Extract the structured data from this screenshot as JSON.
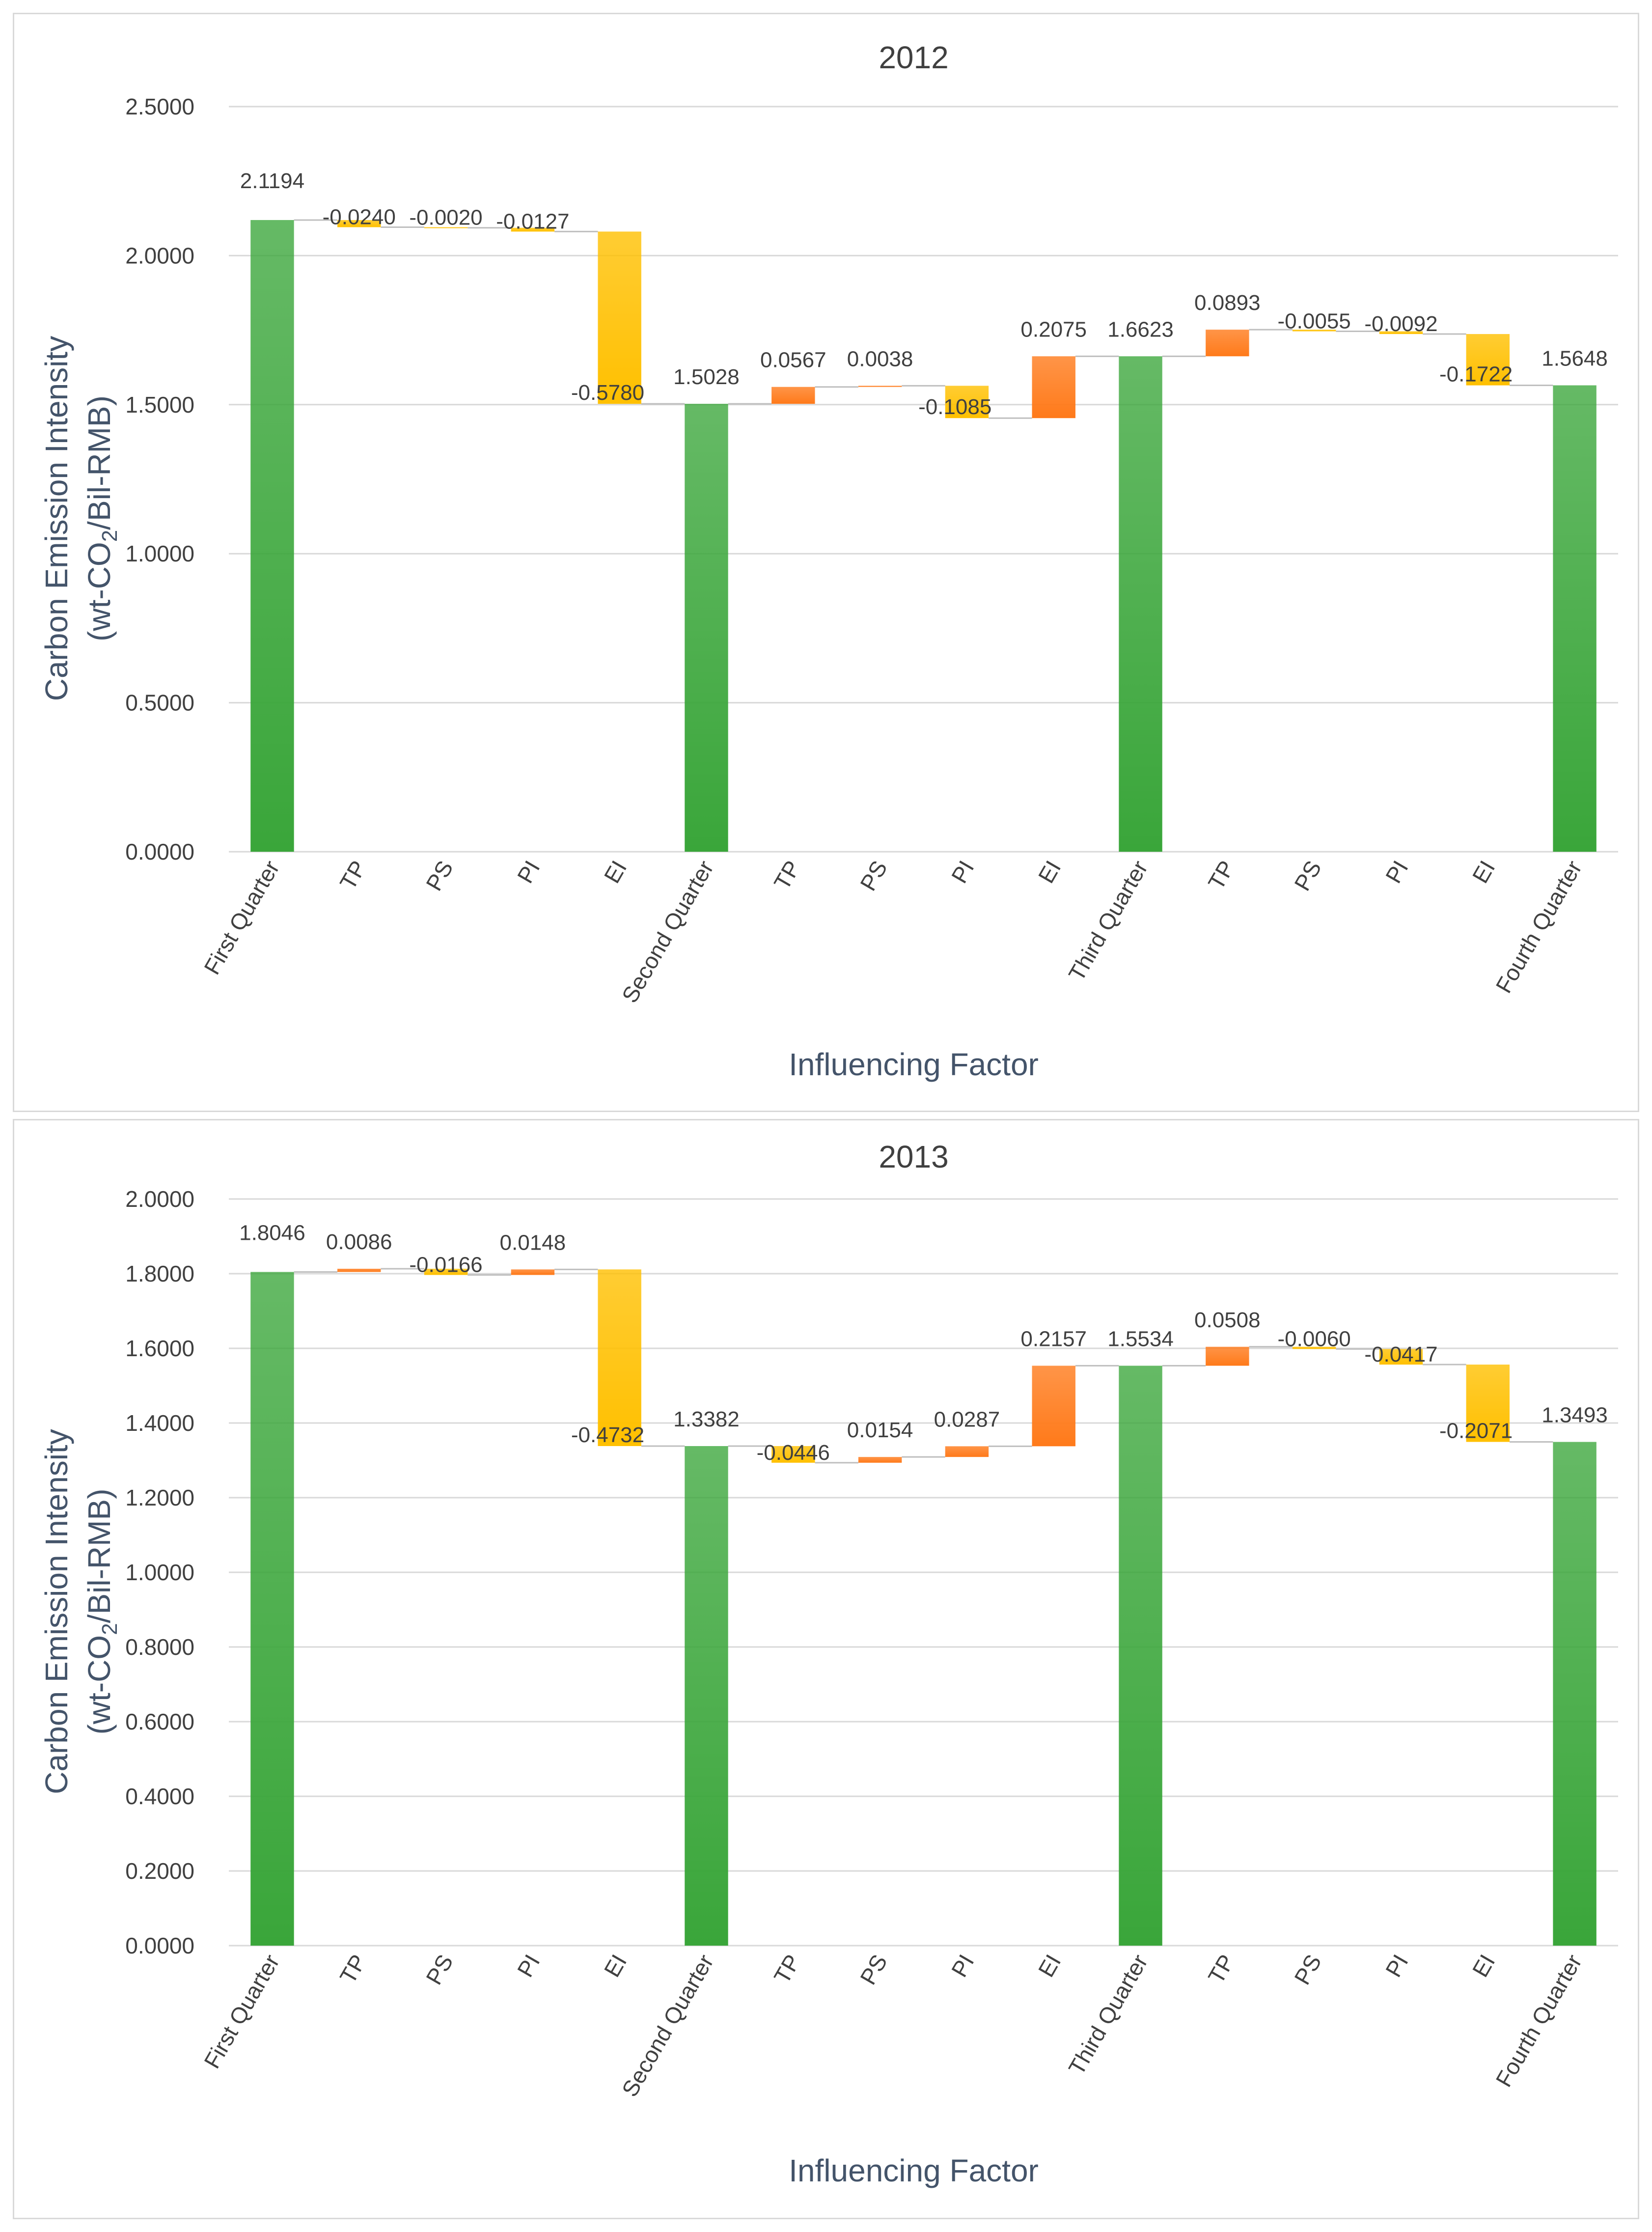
{
  "chart_data": [
    {
      "type": "waterfall",
      "title": "2012",
      "xlabel": "Influencing Factor",
      "ylabel_line1": "Carbon Emission Intensity",
      "ylabel_line2_prefix": "(wt-CO",
      "ylabel_line2_sub": "2",
      "ylabel_line2_suffix": "/Bil-RMB)",
      "ylim": [
        0,
        2.5
      ],
      "yticks": [
        "0.0000",
        "0.5000",
        "1.0000",
        "1.5000",
        "2.0000",
        "2.5000"
      ],
      "ytick_values": [
        0,
        0.5,
        1.0,
        1.5,
        2.0,
        2.5
      ],
      "categories": [
        "First Quarter",
        "TP",
        "PS",
        "PI",
        "EI",
        "Second Quarter",
        "TP",
        "PS",
        "PI",
        "EI",
        "Third Quarter",
        "TP",
        "PS",
        "PI",
        "EI",
        "Fourth Quarter"
      ],
      "kinds": [
        "total",
        "delta",
        "delta",
        "delta",
        "delta",
        "total",
        "delta",
        "delta",
        "delta",
        "delta",
        "total",
        "delta",
        "delta",
        "delta",
        "delta",
        "total"
      ],
      "values": [
        2.1194,
        -0.024,
        -0.002,
        -0.0127,
        -0.578,
        1.5028,
        0.0567,
        0.0038,
        -0.1085,
        0.2075,
        1.6623,
        0.0893,
        -0.0055,
        -0.0092,
        -0.1722,
        1.5648
      ],
      "labels": [
        "2.1194",
        "-0.0240",
        "-0.0020",
        "-0.0127",
        "-0.5780",
        "1.5028",
        "0.0567",
        "0.0038",
        "-0.1085",
        "0.2075",
        "1.6623",
        "0.0893",
        "-0.0055",
        "-0.0092",
        "-0.1722",
        "1.5648"
      ],
      "colors": {
        "total": "#3aa63a",
        "increase": "#ff7a1a",
        "decrease": "#ffc000"
      }
    },
    {
      "type": "waterfall",
      "title": "2013",
      "xlabel": "Influencing Factor",
      "ylabel_line1": "Carbon Emission Intensity",
      "ylabel_line2_prefix": "(wt-CO",
      "ylabel_line2_sub": "2",
      "ylabel_line2_suffix": "/Bil-RMB)",
      "ylim": [
        0,
        2.0
      ],
      "yticks": [
        "0.0000",
        "0.2000",
        "0.4000",
        "0.6000",
        "0.8000",
        "1.0000",
        "1.2000",
        "1.4000",
        "1.6000",
        "1.8000",
        "2.0000"
      ],
      "ytick_values": [
        0,
        0.2,
        0.4,
        0.6,
        0.8,
        1.0,
        1.2,
        1.4,
        1.6,
        1.8,
        2.0
      ],
      "categories": [
        "First Quarter",
        "TP",
        "PS",
        "PI",
        "EI",
        "Second Quarter",
        "TP",
        "PS",
        "PI",
        "EI",
        "Third Quarter",
        "TP",
        "PS",
        "PI",
        "EI",
        "Fourth Quarter"
      ],
      "kinds": [
        "total",
        "delta",
        "delta",
        "delta",
        "delta",
        "total",
        "delta",
        "delta",
        "delta",
        "delta",
        "total",
        "delta",
        "delta",
        "delta",
        "delta",
        "total"
      ],
      "values": [
        1.8046,
        0.0086,
        -0.0166,
        0.0148,
        -0.4732,
        1.3382,
        -0.0446,
        0.0154,
        0.0287,
        0.2157,
        1.5534,
        0.0508,
        -0.006,
        -0.0417,
        -0.2071,
        1.3493
      ],
      "labels": [
        "1.8046",
        "0.0086",
        "-0.0166",
        "0.0148",
        "-0.4732",
        "1.3382",
        "-0.0446",
        "0.0154",
        "0.0287",
        "0.2157",
        "1.5534",
        "0.0508",
        "-0.0060",
        "-0.0417",
        "-0.2071",
        "1.3493"
      ],
      "colors": {
        "total": "#3aa63a",
        "increase": "#ff7a1a",
        "decrease": "#ffc000"
      }
    }
  ]
}
